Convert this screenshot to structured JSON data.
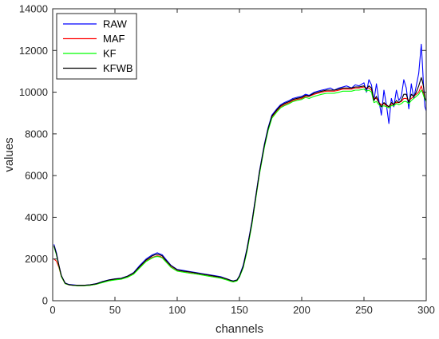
{
  "chart_data": {
    "type": "line",
    "title": "",
    "xlabel": "channels",
    "ylabel": "values",
    "xlim": [
      0,
      300
    ],
    "ylim": [
      0,
      14000
    ],
    "xticks": [
      0,
      50,
      100,
      150,
      200,
      250,
      300
    ],
    "yticks": [
      0,
      2000,
      4000,
      6000,
      8000,
      10000,
      12000,
      14000
    ],
    "grid": false,
    "legend_position": "top-left",
    "series": [
      {
        "name": "RAW",
        "color": "#0000ff",
        "x": [
          1,
          3,
          5,
          7,
          10,
          13,
          16,
          20,
          25,
          30,
          35,
          40,
          45,
          50,
          55,
          60,
          65,
          70,
          75,
          80,
          82,
          84,
          86,
          88,
          90,
          95,
          100,
          105,
          110,
          115,
          120,
          125,
          130,
          135,
          140,
          143,
          145,
          148,
          150,
          153,
          156,
          160,
          163,
          166,
          170,
          173,
          176,
          180,
          183,
          186,
          190,
          193,
          196,
          200,
          203,
          206,
          210,
          213,
          216,
          220,
          223,
          226,
          230,
          233,
          236,
          240,
          243,
          246,
          250,
          252,
          254,
          256,
          258,
          260,
          262,
          264,
          266,
          268,
          270,
          272,
          274,
          276,
          278,
          280,
          282,
          284,
          286,
          288,
          290,
          292,
          294,
          296,
          297,
          298,
          299,
          300
        ],
        "y": [
          2700,
          2300,
          1700,
          1200,
          850,
          780,
          760,
          740,
          740,
          760,
          820,
          920,
          1000,
          1050,
          1080,
          1180,
          1350,
          1700,
          2000,
          2200,
          2250,
          2300,
          2250,
          2200,
          2050,
          1700,
          1500,
          1450,
          1400,
          1350,
          1300,
          1250,
          1200,
          1150,
          1050,
          980,
          950,
          1000,
          1200,
          1700,
          2500,
          3800,
          5000,
          6200,
          7500,
          8300,
          8900,
          9200,
          9400,
          9500,
          9600,
          9700,
          9750,
          9800,
          9900,
          9850,
          10000,
          10050,
          10100,
          10150,
          10200,
          10100,
          10200,
          10250,
          10300,
          10200,
          10350,
          10300,
          10450,
          10000,
          10600,
          10350,
          9600,
          10400,
          9600,
          8900,
          10100,
          9400,
          8500,
          9700,
          9300,
          10100,
          9600,
          9800,
          10600,
          10200,
          9200,
          10400,
          9700,
          10300,
          10900,
          12300,
          11300,
          10100,
          9300,
          9100
        ]
      },
      {
        "name": "MAF",
        "color": "#ff0000",
        "x": [
          1,
          3,
          5,
          7,
          10,
          13,
          16,
          20,
          25,
          30,
          35,
          40,
          45,
          50,
          55,
          60,
          65,
          70,
          75,
          80,
          82,
          84,
          86,
          88,
          90,
          95,
          100,
          105,
          110,
          115,
          120,
          125,
          130,
          135,
          140,
          143,
          145,
          148,
          150,
          153,
          156,
          160,
          163,
          166,
          170,
          173,
          176,
          180,
          183,
          186,
          190,
          193,
          196,
          200,
          203,
          206,
          210,
          213,
          216,
          220,
          223,
          226,
          230,
          233,
          236,
          240,
          243,
          246,
          250,
          252,
          254,
          256,
          258,
          260,
          262,
          264,
          266,
          268,
          270,
          272,
          274,
          276,
          278,
          280,
          282,
          284,
          286,
          288,
          290,
          292,
          294,
          296,
          297,
          298,
          299,
          300
        ],
        "y": [
          2000,
          1900,
          1600,
          1150,
          820,
          760,
          740,
          720,
          720,
          740,
          790,
          880,
          960,
          1010,
          1040,
          1130,
          1290,
          1600,
          1900,
          2080,
          2120,
          2150,
          2130,
          2080,
          1950,
          1620,
          1430,
          1380,
          1330,
          1290,
          1240,
          1190,
          1140,
          1090,
          1000,
          940,
          910,
          960,
          1150,
          1600,
          2400,
          3700,
          4900,
          6100,
          7400,
          8200,
          8800,
          9100,
          9300,
          9400,
          9500,
          9600,
          9650,
          9700,
          9800,
          9800,
          9900,
          9950,
          10000,
          10050,
          10050,
          10050,
          10100,
          10150,
          10150,
          10150,
          10200,
          10200,
          10250,
          10200,
          10200,
          10100,
          9700,
          9700,
          9500,
          9400,
          9450,
          9350,
          9300,
          9400,
          9450,
          9500,
          9500,
          9550,
          9700,
          9700,
          9600,
          9700,
          9800,
          9900,
          10000,
          10300,
          10100,
          9900,
          9700,
          9600
        ]
      },
      {
        "name": "KF",
        "color": "#00ff00",
        "x": [
          1,
          3,
          5,
          7,
          10,
          13,
          16,
          20,
          25,
          30,
          35,
          40,
          45,
          50,
          55,
          60,
          65,
          70,
          75,
          80,
          82,
          84,
          86,
          88,
          90,
          95,
          100,
          105,
          110,
          115,
          120,
          125,
          130,
          135,
          140,
          143,
          145,
          148,
          150,
          153,
          156,
          160,
          163,
          166,
          170,
          173,
          176,
          180,
          183,
          186,
          190,
          193,
          196,
          200,
          203,
          206,
          210,
          213,
          216,
          220,
          223,
          226,
          230,
          233,
          236,
          240,
          243,
          246,
          250,
          252,
          254,
          256,
          258,
          260,
          262,
          264,
          266,
          268,
          270,
          272,
          274,
          276,
          278,
          280,
          282,
          284,
          286,
          288,
          290,
          292,
          294,
          296,
          297,
          298,
          299,
          300
        ],
        "y": [
          2600,
          2200,
          1650,
          1150,
          820,
          760,
          740,
          720,
          720,
          740,
          790,
          870,
          950,
          1000,
          1030,
          1120,
          1270,
          1580,
          1880,
          2050,
          2100,
          2120,
          2100,
          2050,
          1920,
          1600,
          1420,
          1370,
          1320,
          1280,
          1230,
          1180,
          1130,
          1080,
          990,
          930,
          900,
          950,
          1130,
          1580,
          2350,
          3650,
          4850,
          6050,
          7350,
          8150,
          8750,
          9050,
          9250,
          9350,
          9450,
          9550,
          9600,
          9650,
          9750,
          9700,
          9800,
          9850,
          9900,
          9950,
          9950,
          9950,
          10000,
          10050,
          10050,
          10050,
          10100,
          10100,
          10150,
          10050,
          10100,
          10000,
          9500,
          9550,
          9400,
          9300,
          9350,
          9300,
          9250,
          9350,
          9350,
          9450,
          9400,
          9450,
          9550,
          9550,
          9450,
          9600,
          9700,
          9800,
          9900,
          10100,
          10000,
          9800,
          9650,
          9550
        ]
      },
      {
        "name": "KFWB",
        "color": "#000000",
        "x": [
          1,
          3,
          5,
          7,
          10,
          13,
          16,
          20,
          25,
          30,
          35,
          40,
          45,
          50,
          55,
          60,
          65,
          70,
          75,
          80,
          82,
          84,
          86,
          88,
          90,
          95,
          100,
          105,
          110,
          115,
          120,
          125,
          130,
          135,
          140,
          143,
          145,
          148,
          150,
          153,
          156,
          160,
          163,
          166,
          170,
          173,
          176,
          180,
          183,
          186,
          190,
          193,
          196,
          200,
          203,
          206,
          210,
          213,
          216,
          220,
          223,
          226,
          230,
          233,
          236,
          240,
          243,
          246,
          250,
          252,
          254,
          256,
          258,
          260,
          262,
          264,
          266,
          268,
          270,
          272,
          274,
          276,
          278,
          280,
          282,
          284,
          286,
          288,
          290,
          292,
          294,
          296,
          297,
          298,
          299,
          300
        ],
        "y": [
          2650,
          2250,
          1700,
          1200,
          840,
          770,
          750,
          740,
          740,
          760,
          810,
          910,
          990,
          1040,
          1070,
          1170,
          1330,
          1650,
          1950,
          2150,
          2200,
          2230,
          2200,
          2150,
          2000,
          1680,
          1480,
          1420,
          1380,
          1330,
          1280,
          1230,
          1180,
          1130,
          1040,
          970,
          940,
          990,
          1180,
          1650,
          2450,
          3750,
          4950,
          6150,
          7450,
          8250,
          8850,
          9150,
          9350,
          9450,
          9550,
          9650,
          9700,
          9750,
          9850,
          9820,
          9950,
          10000,
          10050,
          10100,
          10100,
          10100,
          10150,
          10200,
          10200,
          10200,
          10250,
          10250,
          10300,
          10150,
          10300,
          10200,
          9600,
          9800,
          9500,
          9300,
          9500,
          9400,
          9300,
          9500,
          9400,
          9600,
          9500,
          9600,
          9900,
          9900,
          9500,
          9900,
          9800,
          10000,
          10300,
          10700,
          10500,
          10200,
          9700,
          9600
        ]
      }
    ]
  }
}
